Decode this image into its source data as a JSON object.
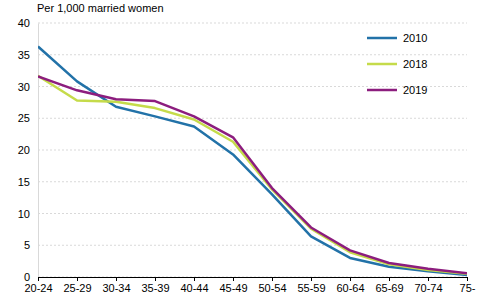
{
  "chart_data": {
    "type": "line",
    "y_label": "Per 1,000 married women",
    "categories": [
      "20-24",
      "25-29",
      "30-34",
      "35-39",
      "40-44",
      "45-49",
      "50-54",
      "55-59",
      "60-64",
      "65-69",
      "70-74",
      "75-"
    ],
    "series": [
      {
        "name": "2010",
        "color": "#2272a8",
        "values": [
          36.3,
          30.8,
          26.8,
          25.3,
          23.7,
          19.3,
          13.0,
          6.4,
          3.0,
          1.6,
          0.9,
          0.3
        ]
      },
      {
        "name": "2018",
        "color": "#c5db4a",
        "values": [
          31.7,
          27.8,
          27.6,
          26.6,
          24.8,
          21.3,
          13.8,
          7.6,
          3.9,
          2.0,
          1.1,
          0.5
        ]
      },
      {
        "name": "2019",
        "color": "#8c1d7e",
        "values": [
          31.6,
          29.4,
          28.0,
          27.7,
          25.3,
          22.0,
          14.0,
          7.8,
          4.2,
          2.2,
          1.3,
          0.6
        ]
      }
    ],
    "ylim": [
      0,
      40
    ],
    "yticks": [
      0,
      5,
      10,
      15,
      20,
      25,
      30,
      35,
      40
    ],
    "grid": true,
    "legend": "top-right"
  }
}
